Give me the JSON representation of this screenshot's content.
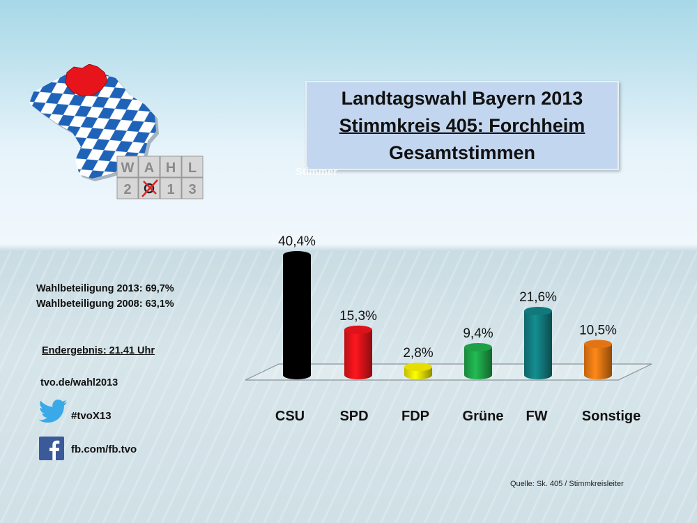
{
  "title": {
    "line1": "Landtagswahl Bayern 2013",
    "line2": "Stimmkreis 405: Forchheim",
    "line3": "Gesamtstimmen"
  },
  "ghost_text": "Stimmer",
  "logo": {
    "tiles_row1": [
      "W",
      "A",
      "H",
      "L"
    ],
    "tiles_row2": [
      "2",
      "0",
      "1",
      "3"
    ],
    "colors": {
      "bavaria_blue": "#1f63b8",
      "region_red": "#e8141b"
    }
  },
  "info": {
    "turnout_2013": "Wahlbeteiligung 2013: 69,7%",
    "turnout_2008": "Wahlbeteiligung 2008: 63,1%",
    "final_result": "Endergebnis: 21.41 Uhr",
    "website": "tvo.de/wahl2013",
    "twitter": "#tvoX13",
    "facebook": "fb.com/fb.tvo"
  },
  "icons": {
    "twitter": "twitter-bird-icon",
    "facebook": "facebook-f-icon"
  },
  "source": "Quelle: Sk. 405 / Stimmkreisleiter",
  "chart_data": {
    "type": "bar",
    "title": "Landtagswahl Bayern 2013 – Stimmkreis 405: Forchheim – Gesamtstimmen",
    "categories": [
      "CSU",
      "SPD",
      "FDP",
      "Grüne",
      "FW",
      "Sonstige"
    ],
    "values": [
      40.4,
      15.3,
      2.8,
      9.4,
      21.6,
      10.5
    ],
    "value_labels": [
      "40,4%",
      "15,3%",
      "2,8%",
      "9,4%",
      "21,6%",
      "10,5%"
    ],
    "colors": [
      "#000000",
      "#e8141b",
      "#f2ea00",
      "#1fa84a",
      "#127f82",
      "#f07a14"
    ],
    "unit": "%",
    "xlabel": "",
    "ylabel": "",
    "ylim": [
      0,
      45
    ],
    "grid": false,
    "legend": "none",
    "style": "3d-cylinder"
  }
}
